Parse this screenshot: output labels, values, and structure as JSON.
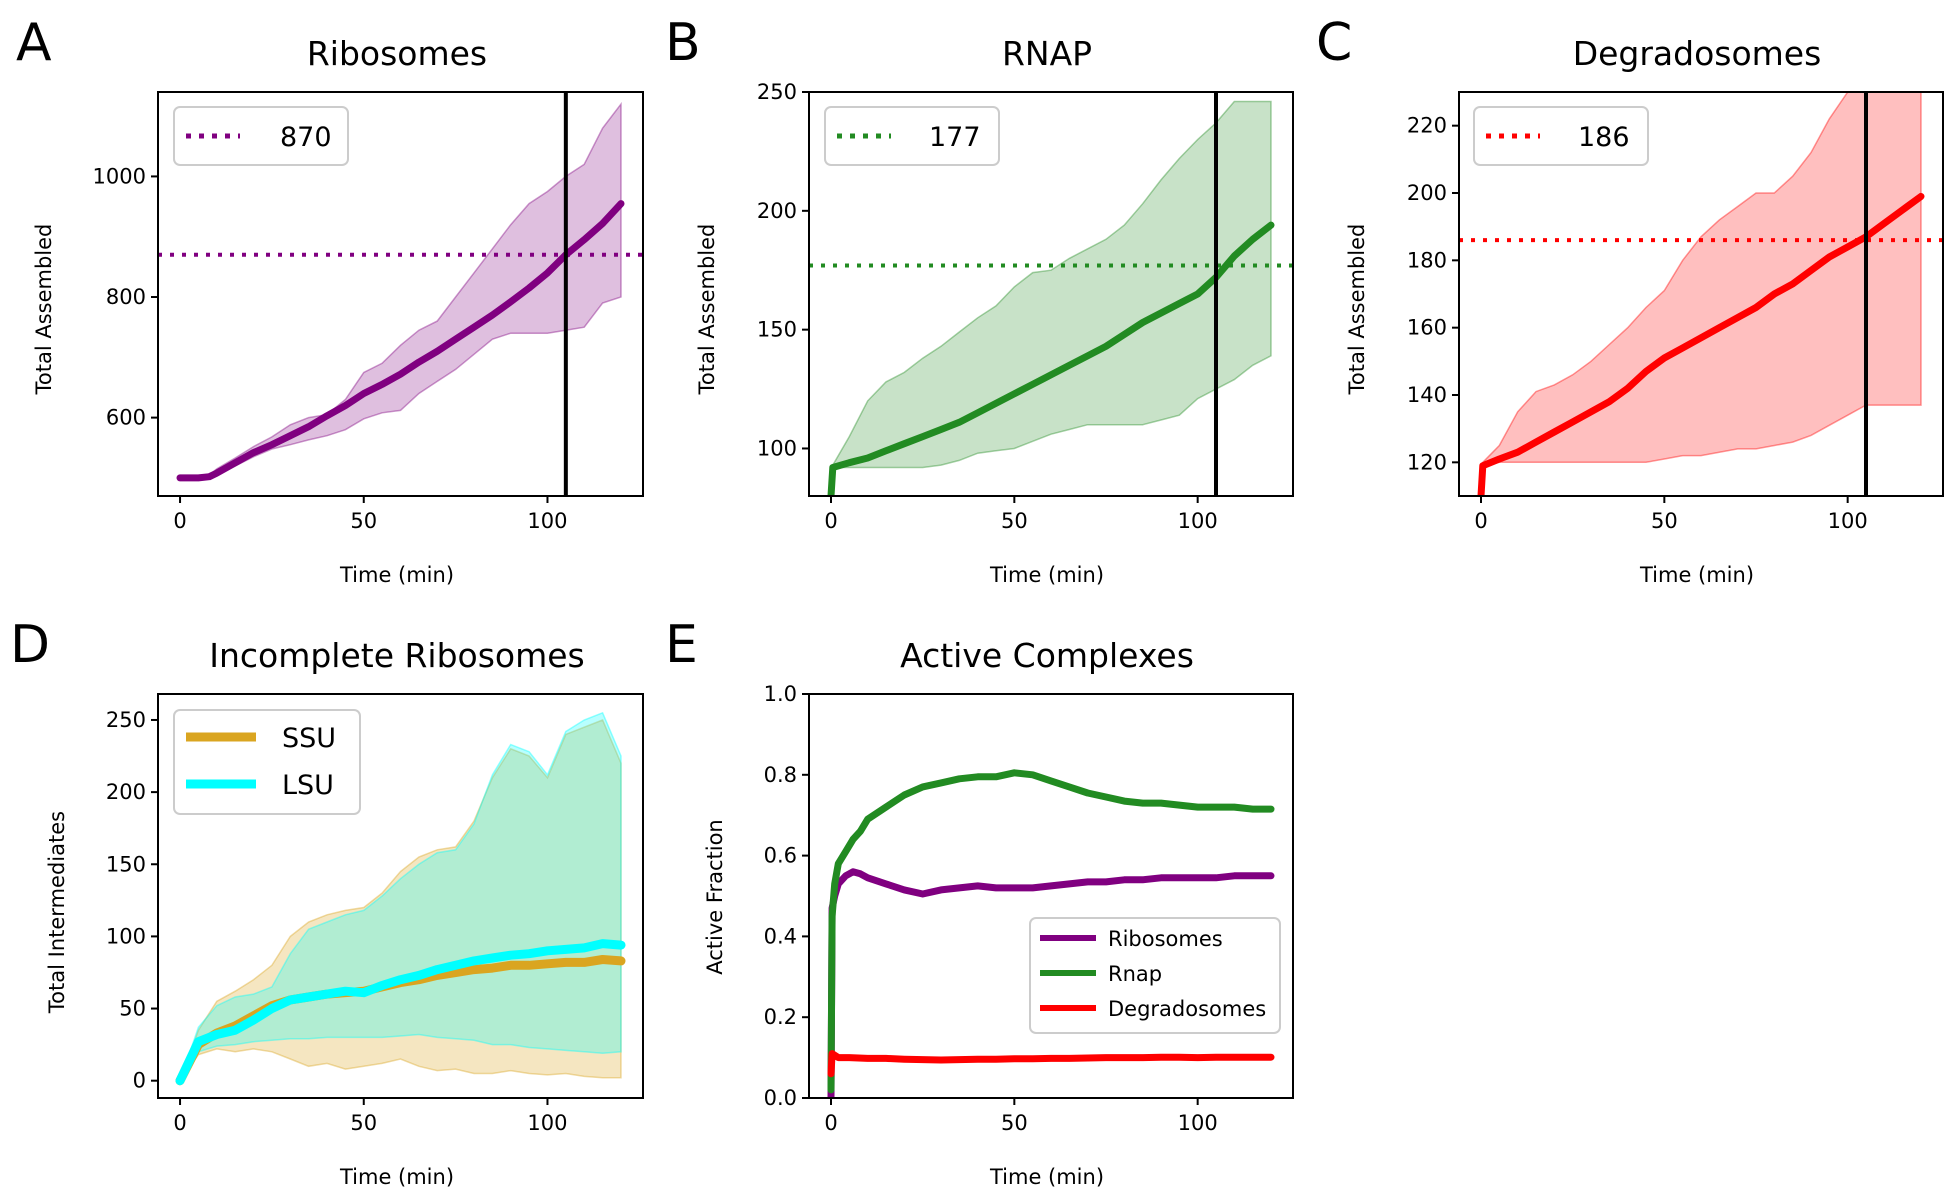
{
  "colors": {
    "ribosomes": "#800080",
    "rnap": "#228b22",
    "degradosomes": "#ff0000",
    "ssu": "#daa520",
    "lsu": "#00ffff",
    "marker": "#000000"
  },
  "chart_data": [
    {
      "id": "A",
      "type": "line",
      "panel_letter": "A",
      "title": "Ribosomes",
      "xlabel": "Time (min)",
      "ylabel": "Total Assembled",
      "xlim": [
        -6,
        126
      ],
      "ylim": [
        470,
        1140
      ],
      "xticks": [
        0,
        50,
        100
      ],
      "yticks": [
        600,
        800,
        1000
      ],
      "vline_x": 105,
      "hline": {
        "value": 870,
        "label": "870"
      },
      "legend_position": "top-left",
      "series": [
        {
          "color_key": "ribosomes",
          "x": [
            0,
            5,
            8,
            10,
            15,
            20,
            25,
            30,
            35,
            40,
            45,
            50,
            55,
            60,
            65,
            70,
            75,
            80,
            85,
            90,
            95,
            100,
            105,
            110,
            115,
            120
          ],
          "mean": [
            500,
            500,
            502,
            508,
            525,
            542,
            555,
            570,
            585,
            603,
            620,
            640,
            655,
            672,
            692,
            710,
            730,
            750,
            770,
            792,
            815,
            840,
            870,
            895,
            922,
            955
          ],
          "lower": [
            500,
            500,
            500,
            505,
            520,
            535,
            548,
            555,
            563,
            570,
            580,
            598,
            608,
            612,
            640,
            660,
            680,
            705,
            730,
            740,
            740,
            740,
            745,
            750,
            790,
            800
          ],
          "upper": [
            500,
            500,
            505,
            515,
            533,
            552,
            568,
            588,
            600,
            605,
            630,
            675,
            690,
            720,
            745,
            760,
            800,
            840,
            880,
            920,
            955,
            975,
            1000,
            1020,
            1080,
            1120
          ]
        }
      ]
    },
    {
      "id": "B",
      "type": "line",
      "panel_letter": "B",
      "title": "RNAP",
      "xlabel": "Time (min)",
      "ylabel": "Total Assembled",
      "xlim": [
        -6,
        126
      ],
      "ylim": [
        80,
        250
      ],
      "xticks": [
        0,
        50,
        100
      ],
      "yticks": [
        100,
        150,
        200,
        250
      ],
      "vline_x": 105,
      "hline": {
        "value": 177,
        "label": "177"
      },
      "legend_position": "top-left",
      "series": [
        {
          "color_key": "rnap",
          "x": [
            0,
            0.5,
            5,
            10,
            15,
            20,
            25,
            30,
            35,
            40,
            45,
            50,
            55,
            60,
            65,
            70,
            75,
            80,
            85,
            90,
            95,
            100,
            105,
            110,
            115,
            120
          ],
          "mean": [
            80,
            92,
            94,
            96,
            99,
            102,
            105,
            108,
            111,
            115,
            119,
            123,
            127,
            131,
            135,
            139,
            143,
            148,
            153,
            157,
            161,
            165,
            172,
            181,
            188,
            194
          ],
          "lower": [
            80,
            92,
            92,
            92,
            92,
            92,
            92,
            93,
            95,
            98,
            99,
            100,
            103,
            106,
            108,
            110,
            110,
            110,
            110,
            112,
            114,
            121,
            125,
            129,
            135,
            139
          ],
          "upper": [
            80,
            93,
            105,
            120,
            128,
            132,
            138,
            143,
            149,
            155,
            160,
            168,
            174,
            175,
            180,
            184,
            188,
            194,
            203,
            213,
            222,
            230,
            237,
            246,
            246,
            246
          ]
        }
      ]
    },
    {
      "id": "C",
      "type": "line",
      "panel_letter": "C",
      "title": "Degradosomes",
      "xlabel": "Time (min)",
      "ylabel": "Total Assembled",
      "xlim": [
        -6,
        126
      ],
      "ylim": [
        110,
        230
      ],
      "xticks": [
        0,
        50,
        100
      ],
      "yticks": [
        120,
        140,
        160,
        180,
        200,
        220
      ],
      "vline_x": 105,
      "hline": {
        "value": 186,
        "label": "186"
      },
      "legend_position": "top-left",
      "series": [
        {
          "color_key": "degradosomes",
          "x": [
            0,
            0.5,
            5,
            10,
            15,
            20,
            25,
            30,
            35,
            40,
            45,
            50,
            55,
            60,
            65,
            70,
            75,
            80,
            85,
            90,
            95,
            100,
            105,
            110,
            115,
            120
          ],
          "mean": [
            110,
            119,
            121,
            123,
            126,
            129,
            132,
            135,
            138,
            142,
            147,
            151,
            154,
            157,
            160,
            163,
            166,
            170,
            173,
            177,
            181,
            184,
            187,
            191,
            195,
            199
          ],
          "lower": [
            110,
            119,
            120,
            120,
            120,
            120,
            120,
            120,
            120,
            120,
            120,
            121,
            122,
            122,
            123,
            124,
            124,
            125,
            126,
            128,
            131,
            134,
            137,
            137,
            137,
            137
          ],
          "upper": [
            110,
            120,
            125,
            135,
            141,
            143,
            146,
            150,
            155,
            160,
            166,
            171,
            180,
            187,
            192,
            196,
            200,
            200,
            205,
            212,
            222,
            230,
            230,
            230,
            230,
            230
          ]
        }
      ]
    },
    {
      "id": "D",
      "type": "line",
      "panel_letter": "D",
      "title": "Incomplete Ribosomes",
      "xlabel": "Time (min)",
      "ylabel": "Total Intermediates",
      "xlim": [
        -6,
        126
      ],
      "ylim": [
        -12,
        268
      ],
      "xticks": [
        0,
        50,
        100
      ],
      "yticks": [
        0,
        50,
        100,
        150,
        200,
        250
      ],
      "legend_position": "top-left",
      "series": [
        {
          "name": "SSU",
          "color_key": "ssu",
          "x": [
            0,
            5,
            10,
            15,
            20,
            25,
            30,
            35,
            40,
            45,
            50,
            55,
            60,
            65,
            70,
            75,
            80,
            85,
            90,
            95,
            100,
            105,
            110,
            115,
            120
          ],
          "mean": [
            0,
            25,
            33,
            38,
            45,
            52,
            56,
            58,
            60,
            61,
            62,
            65,
            68,
            70,
            73,
            75,
            77,
            78,
            80,
            80,
            81,
            82,
            82,
            84,
            83
          ],
          "lower": [
            0,
            18,
            22,
            20,
            22,
            20,
            15,
            10,
            12,
            8,
            10,
            12,
            15,
            10,
            7,
            8,
            5,
            5,
            7,
            5,
            4,
            5,
            3,
            2,
            2
          ],
          "upper": [
            0,
            35,
            55,
            62,
            70,
            80,
            100,
            110,
            115,
            118,
            120,
            130,
            145,
            155,
            160,
            162,
            180,
            210,
            230,
            225,
            210,
            240,
            245,
            250,
            220
          ]
        },
        {
          "name": "LSU",
          "color_key": "lsu",
          "x": [
            0,
            5,
            10,
            15,
            20,
            25,
            30,
            35,
            40,
            45,
            50,
            55,
            60,
            65,
            70,
            75,
            80,
            85,
            90,
            95,
            100,
            105,
            110,
            115,
            120
          ],
          "mean": [
            0,
            27,
            32,
            35,
            42,
            50,
            56,
            58,
            60,
            62,
            61,
            66,
            70,
            73,
            77,
            80,
            83,
            85,
            87,
            88,
            90,
            91,
            92,
            95,
            94
          ],
          "lower": [
            0,
            20,
            24,
            25,
            27,
            28,
            29,
            29,
            30,
            30,
            30,
            30,
            31,
            32,
            30,
            29,
            28,
            25,
            25,
            23,
            22,
            21,
            20,
            19,
            20
          ],
          "upper": [
            0,
            37,
            52,
            58,
            60,
            65,
            88,
            105,
            110,
            115,
            118,
            128,
            140,
            150,
            158,
            160,
            178,
            212,
            233,
            228,
            212,
            242,
            250,
            255,
            225
          ]
        }
      ]
    },
    {
      "id": "E",
      "type": "line",
      "panel_letter": "E",
      "title": "Active Complexes",
      "xlabel": "Time (min)",
      "ylabel": "Active Fraction",
      "xlim": [
        -6,
        126
      ],
      "ylim": [
        0,
        1.0
      ],
      "xticks": [
        0,
        50,
        100
      ],
      "yticks": [
        0.0,
        0.2,
        0.4,
        0.6,
        0.8,
        1.0
      ],
      "ytick_labels": [
        "0.0",
        "0.2",
        "0.4",
        "0.6",
        "0.8",
        "1.0"
      ],
      "legend_position": "lower-right",
      "series": [
        {
          "name": "Ribosomes",
          "color_key": "ribosomes",
          "x": [
            0,
            0.3,
            1,
            2,
            4,
            6,
            8,
            10,
            15,
            20,
            25,
            30,
            35,
            40,
            45,
            50,
            55,
            60,
            65,
            70,
            75,
            80,
            85,
            90,
            95,
            100,
            105,
            110,
            115,
            120
          ],
          "values": [
            0.0,
            0.47,
            0.5,
            0.53,
            0.55,
            0.56,
            0.555,
            0.545,
            0.53,
            0.515,
            0.505,
            0.515,
            0.52,
            0.525,
            0.52,
            0.52,
            0.52,
            0.525,
            0.53,
            0.535,
            0.535,
            0.54,
            0.54,
            0.545,
            0.545,
            0.545,
            0.545,
            0.55,
            0.55,
            0.55
          ]
        },
        {
          "name": "Rnap",
          "color_key": "rnap",
          "x": [
            0,
            0.3,
            1,
            2,
            4,
            6,
            8,
            10,
            15,
            20,
            25,
            30,
            35,
            40,
            45,
            50,
            55,
            60,
            65,
            70,
            75,
            80,
            85,
            90,
            95,
            100,
            105,
            110,
            115,
            120
          ],
          "values": [
            0.02,
            0.45,
            0.53,
            0.58,
            0.61,
            0.64,
            0.66,
            0.69,
            0.72,
            0.75,
            0.77,
            0.78,
            0.79,
            0.795,
            0.795,
            0.805,
            0.8,
            0.785,
            0.77,
            0.755,
            0.745,
            0.735,
            0.73,
            0.73,
            0.725,
            0.72,
            0.72,
            0.72,
            0.715,
            0.715
          ]
        },
        {
          "name": "Degradosomes",
          "color_key": "degradosomes",
          "x": [
            0,
            0.3,
            2,
            5,
            10,
            15,
            20,
            25,
            30,
            35,
            40,
            45,
            50,
            55,
            60,
            65,
            70,
            75,
            80,
            85,
            90,
            95,
            100,
            105,
            110,
            115,
            120
          ],
          "values": [
            0.06,
            0.11,
            0.1,
            0.1,
            0.098,
            0.098,
            0.096,
            0.095,
            0.094,
            0.095,
            0.096,
            0.096,
            0.097,
            0.097,
            0.098,
            0.098,
            0.099,
            0.1,
            0.1,
            0.1,
            0.101,
            0.101,
            0.1,
            0.101,
            0.101,
            0.101,
            0.101
          ]
        }
      ]
    }
  ]
}
